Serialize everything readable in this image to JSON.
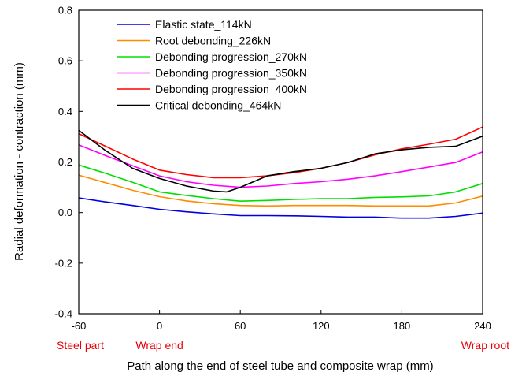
{
  "chart_data": {
    "type": "line",
    "title": "",
    "xlabel": "Path along the end of steel tube and composite wrap (mm)",
    "ylabel": "Radial deformation - contraction (mm)",
    "xlim": [
      -60,
      240
    ],
    "ylim": [
      -0.4,
      0.8
    ],
    "xticks": [
      -60,
      0,
      60,
      120,
      180,
      240
    ],
    "yticks": [
      -0.4,
      -0.2,
      0.0,
      0.2,
      0.4,
      0.6,
      0.8
    ],
    "grid": false,
    "legend_position": "top-left",
    "annotations": [
      {
        "text": "Steel part",
        "x": -60,
        "color": "#e8000b"
      },
      {
        "text": "Wrap end",
        "x": 0,
        "color": "#e8000b"
      },
      {
        "text": "Wrap root",
        "x": 240,
        "color": "#e8000b"
      }
    ],
    "series": [
      {
        "name": "Elastic state_114kN",
        "color": "#0000e6",
        "x": [
          -60,
          -40,
          -20,
          0,
          20,
          40,
          60,
          80,
          100,
          120,
          140,
          160,
          180,
          200,
          220,
          240
        ],
        "y": [
          0.058,
          0.042,
          0.028,
          0.013,
          0.003,
          -0.005,
          -0.012,
          -0.012,
          -0.013,
          -0.015,
          -0.018,
          -0.018,
          -0.022,
          -0.022,
          -0.015,
          -0.002
        ]
      },
      {
        "name": "Root debonding_226kN",
        "color": "#ff8c00",
        "x": [
          -60,
          -40,
          -20,
          0,
          20,
          40,
          60,
          80,
          100,
          120,
          140,
          160,
          180,
          200,
          220,
          240
        ],
        "y": [
          0.148,
          0.118,
          0.088,
          0.063,
          0.046,
          0.035,
          0.028,
          0.026,
          0.028,
          0.028,
          0.028,
          0.026,
          0.026,
          0.026,
          0.038,
          0.065
        ]
      },
      {
        "name": "Debonding progression_270kN",
        "color": "#00e000",
        "x": [
          -60,
          -40,
          -20,
          0,
          20,
          40,
          60,
          80,
          100,
          120,
          140,
          160,
          180,
          200,
          220,
          240
        ],
        "y": [
          0.188,
          0.155,
          0.12,
          0.082,
          0.068,
          0.055,
          0.045,
          0.048,
          0.052,
          0.055,
          0.055,
          0.06,
          0.062,
          0.066,
          0.082,
          0.115
        ]
      },
      {
        "name": "Debonding progression_350kN",
        "color": "#ff00ff",
        "x": [
          -60,
          -40,
          -20,
          0,
          20,
          40,
          60,
          80,
          100,
          120,
          140,
          160,
          180,
          200,
          220,
          240
        ],
        "y": [
          0.268,
          0.225,
          0.185,
          0.145,
          0.122,
          0.108,
          0.1,
          0.105,
          0.115,
          0.122,
          0.132,
          0.145,
          0.162,
          0.18,
          0.198,
          0.24
        ]
      },
      {
        "name": "Debonding progression_400kN",
        "color": "#ff0000",
        "x": [
          -60,
          -40,
          -20,
          0,
          20,
          40,
          60,
          80,
          100,
          120,
          140,
          160,
          180,
          200,
          220,
          240
        ],
        "y": [
          0.312,
          0.262,
          0.212,
          0.168,
          0.15,
          0.138,
          0.138,
          0.145,
          0.158,
          0.175,
          0.198,
          0.228,
          0.252,
          0.27,
          0.29,
          0.338
        ]
      },
      {
        "name": "Critical debonding_464kN",
        "color": "#000000",
        "x": [
          -60,
          -40,
          -20,
          0,
          20,
          40,
          50,
          60,
          80,
          100,
          120,
          140,
          160,
          180,
          200,
          220,
          240
        ],
        "y": [
          0.325,
          0.245,
          0.175,
          0.135,
          0.105,
          0.085,
          0.082,
          0.1,
          0.145,
          0.162,
          0.175,
          0.198,
          0.232,
          0.248,
          0.258,
          0.262,
          0.302
        ]
      }
    ]
  }
}
